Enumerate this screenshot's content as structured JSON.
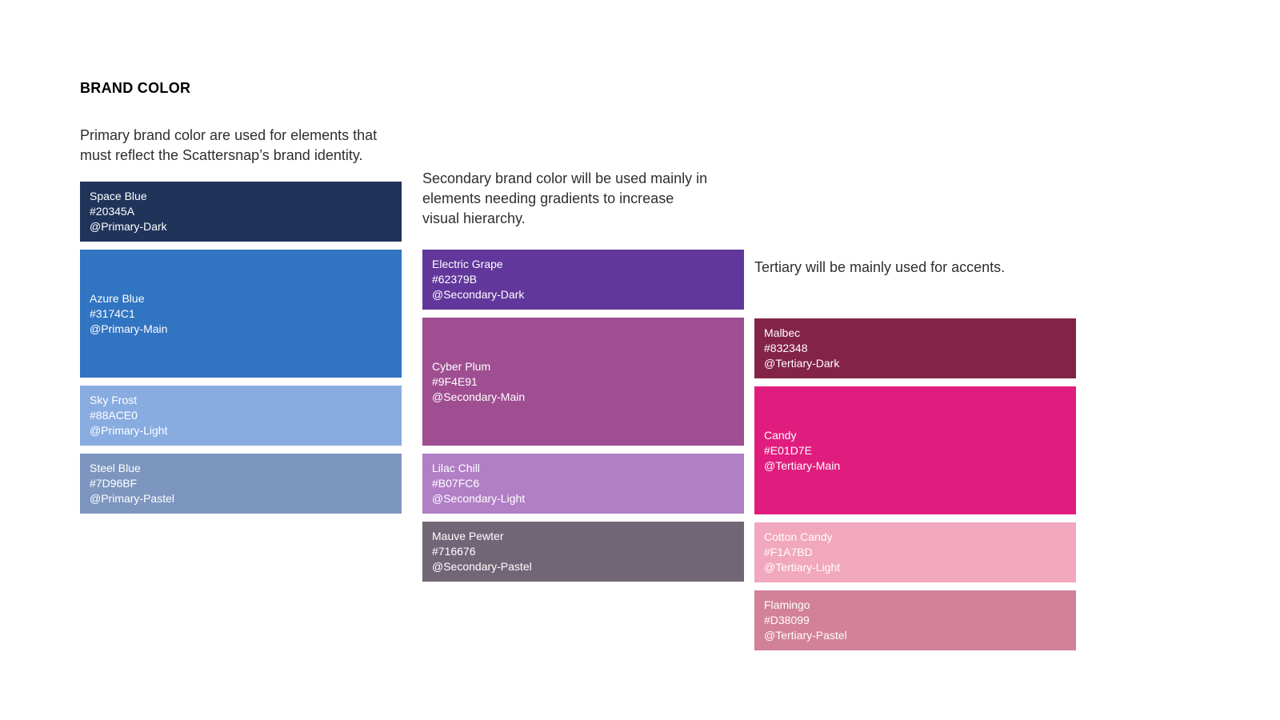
{
  "title": "BRAND COLOR",
  "primary": {
    "description": "Primary brand color are used for elements that\nmust reflect the Scattersnap’s brand identity.",
    "swatches": [
      {
        "name": "Space Blue",
        "hex": "#20345A",
        "token": "@Primary-Dark",
        "color": "#20345A"
      },
      {
        "name": "Azure Blue",
        "hex": "#3174C1",
        "token": "@Primary-Main",
        "color": "#3174C1"
      },
      {
        "name": "Sky Frost",
        "hex": "#88ACE0",
        "token": "@Primary-Light",
        "color": "#88ACE0"
      },
      {
        "name": "Steel Blue",
        "hex": "#7D96BF",
        "token": "@Primary-Pastel",
        "color": "#7D96BF"
      }
    ]
  },
  "secondary": {
    "description": "Secondary brand color will be used mainly in\nelements needing gradients to increase\nvisual hierarchy.",
    "swatches": [
      {
        "name": "Electric Grape",
        "hex": "#62379B",
        "token": "@Secondary-Dark",
        "color": "#62379B"
      },
      {
        "name": "Cyber Plum",
        "hex": "#9F4E91",
        "token": "@Secondary-Main",
        "color": "#9F4E91"
      },
      {
        "name": "Lilac Chill",
        "hex": "#B07FC6",
        "token": "@Secondary-Light",
        "color": "#B07FC6"
      },
      {
        "name": "Mauve Pewter",
        "hex": "#716676",
        "token": "@Secondary-Pastel",
        "color": "#716676"
      }
    ]
  },
  "tertiary": {
    "description": "Tertiary will be mainly used for accents.",
    "swatches": [
      {
        "name": "Malbec",
        "hex": "#832348",
        "token": "@Tertiary-Dark",
        "color": "#832348"
      },
      {
        "name": "Candy",
        "hex": "#E01D7E",
        "token": "@Tertiary-Main",
        "color": "#E01D7E"
      },
      {
        "name": "Cotton Candy",
        "hex": "#F1A7BD",
        "token": "@Tertiary-Light",
        "color": "#F1A7BD"
      },
      {
        "name": "Flamingo",
        "hex": "#D38099",
        "token": "@Tertiary-Pastel",
        "color": "#D38099"
      }
    ]
  }
}
